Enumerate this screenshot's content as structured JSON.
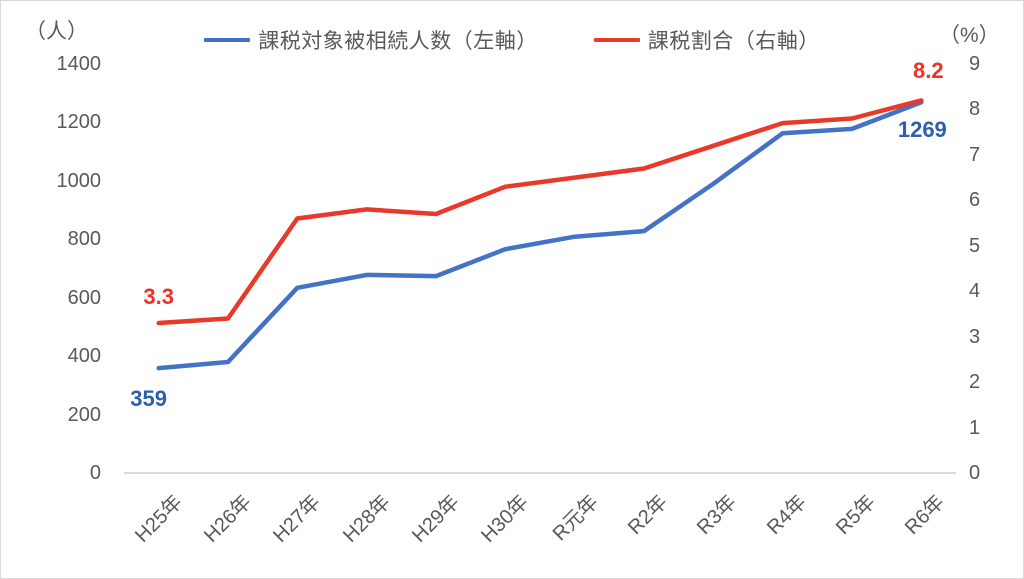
{
  "chart_data": {
    "type": "line",
    "title": "",
    "categories": [
      "H25年",
      "H26年",
      "H27年",
      "H28年",
      "H29年",
      "H30年",
      "R元年",
      "R2年",
      "R3年",
      "R4年",
      "R5年",
      "R6年"
    ],
    "series": [
      {
        "name": "課税対象被相続人数（左軸）",
        "axis": "left",
        "color": "#4472C4",
        "label_color": "#2D5FAA",
        "values": [
          359,
          380,
          634,
          678,
          674,
          766,
          809,
          828,
          990,
          1163,
          1178,
          1269
        ]
      },
      {
        "name": "課税割合（右軸）",
        "axis": "right",
        "color": "#E8392B",
        "label_color": "#EE3124",
        "values": [
          3.3,
          3.4,
          5.6,
          5.8,
          5.7,
          6.3,
          6.5,
          6.7,
          7.2,
          7.7,
          7.8,
          8.2
        ]
      }
    ],
    "left_axis": {
      "unit": "（人）",
      "min": 0,
      "max": 1400,
      "step": 200,
      "ticks": [
        "1400",
        "1200",
        "1000",
        "800",
        "600",
        "400",
        "200",
        "0"
      ]
    },
    "right_axis": {
      "unit": "（%）",
      "min": 0,
      "max": 9,
      "step": 1,
      "ticks": [
        "9",
        "8",
        "7",
        "6",
        "5",
        "4",
        "3",
        "2",
        "1",
        "0"
      ]
    },
    "point_labels": [
      {
        "series": 0,
        "index": 0,
        "text": "359"
      },
      {
        "series": 0,
        "index": 11,
        "text": "1269"
      },
      {
        "series": 1,
        "index": 0,
        "text": "3.3"
      },
      {
        "series": 1,
        "index": 11,
        "text": "8.2"
      }
    ],
    "legend_position": "top",
    "grid": false,
    "axis_line_color": "#d9d9d9",
    "text_color": "#595959"
  }
}
